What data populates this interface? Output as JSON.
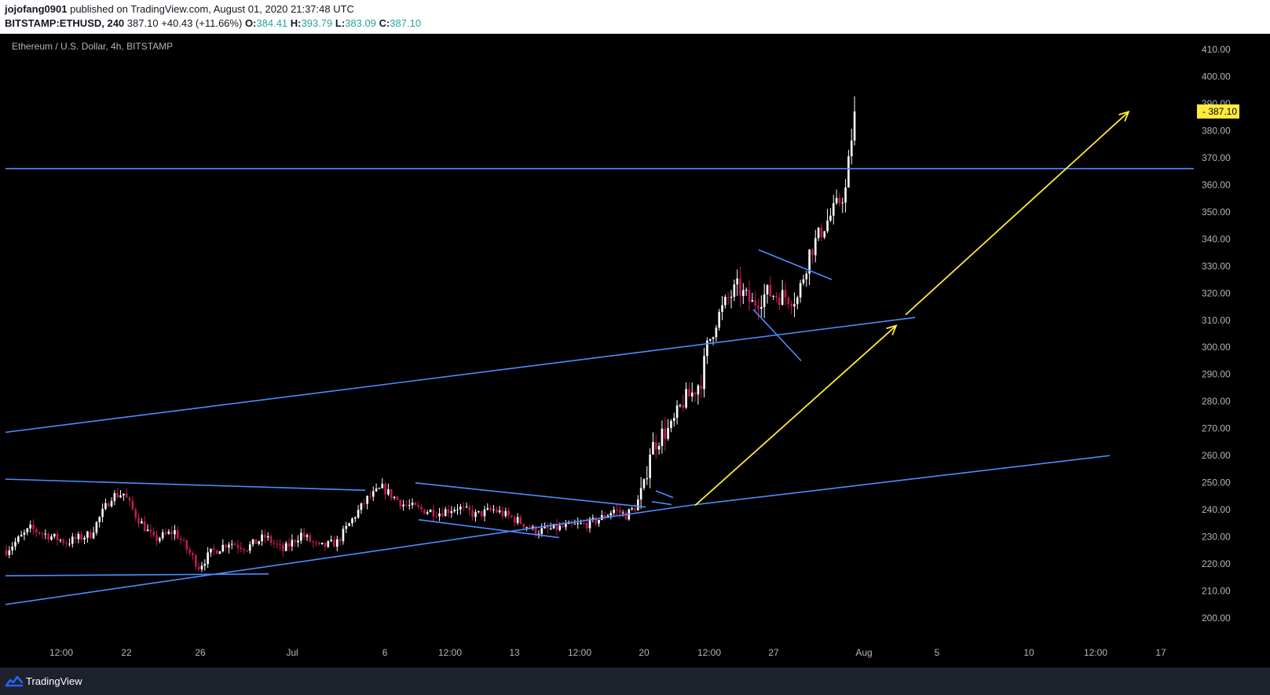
{
  "header": {
    "author": "jojofang0901",
    "published_text": "published on TradingView.com, August 01, 2020 21:37:48 UTC",
    "symbol": "BITSTAMP:ETHUSD, 240",
    "last": "387.10",
    "change": "+40.43 (+11.66%)",
    "o_label": "O:",
    "o_value": "384.41",
    "h_label": "H:",
    "h_value": "393.79",
    "l_label": "L:",
    "l_value": "383.09",
    "c_label": "C:",
    "c_value": "387.10"
  },
  "footer": {
    "brand": "TradingView",
    "logo_icon": "tradingview-logo-icon"
  },
  "colors": {
    "background": "#000000",
    "axis_text": "#b2b5be",
    "up_candle": "#ffffff",
    "down_candle": "#c2185b",
    "trendline": "#4c8dff",
    "arrow": "#ffeb3b",
    "price_label_bg": "#ffeb3b"
  },
  "chart_data": {
    "type": "candlestick",
    "title": "Ethereum / U.S. Dollar, 4h, BITSTAMP",
    "ylim": [
      195,
      413
    ],
    "y_ticks": [
      "410.00",
      "400.00",
      "390.00",
      "380.00",
      "370.00",
      "360.00",
      "350.00",
      "340.00",
      "330.00",
      "320.00",
      "310.00",
      "300.00",
      "290.00",
      "280.00",
      "270.00",
      "260.00",
      "250.00",
      "240.00",
      "230.00",
      "220.00",
      "210.00",
      "200.00"
    ],
    "x_ticks": [
      "12:00",
      "22",
      "26",
      "Jul",
      "6",
      "12:00",
      "13",
      "12:00",
      "20",
      "12:00",
      "27",
      "Aug",
      "5",
      "10",
      "12:00",
      "17"
    ],
    "last_price_label": "387.10",
    "price_path": [
      [
        0,
        225
      ],
      [
        8,
        233
      ],
      [
        20,
        228
      ],
      [
        28,
        231
      ],
      [
        35,
        245
      ],
      [
        39,
        246
      ],
      [
        43,
        238
      ],
      [
        49,
        229
      ],
      [
        56,
        232
      ],
      [
        64,
        219
      ],
      [
        68,
        224
      ],
      [
        74,
        228
      ],
      [
        80,
        226
      ],
      [
        86,
        230
      ],
      [
        92,
        225
      ],
      [
        98,
        231
      ],
      [
        104,
        226
      ],
      [
        110,
        228
      ],
      [
        116,
        238
      ],
      [
        120,
        244
      ],
      [
        125,
        248
      ],
      [
        132,
        242
      ],
      [
        138,
        240
      ],
      [
        144,
        239
      ],
      [
        150,
        241
      ],
      [
        156,
        238
      ],
      [
        162,
        240
      ],
      [
        170,
        236
      ],
      [
        176,
        232
      ],
      [
        182,
        233
      ],
      [
        188,
        234
      ],
      [
        194,
        235
      ],
      [
        198,
        237
      ],
      [
        202,
        240
      ],
      [
        206,
        238
      ],
      [
        209,
        241
      ],
      [
        212,
        248
      ],
      [
        214,
        262
      ],
      [
        218,
        268
      ],
      [
        221,
        270
      ],
      [
        225,
        280
      ],
      [
        228,
        283
      ],
      [
        231,
        288
      ],
      [
        233,
        300
      ],
      [
        236,
        310
      ],
      [
        240,
        318
      ],
      [
        243,
        322
      ],
      [
        248,
        316
      ],
      [
        253,
        320
      ],
      [
        258,
        319
      ],
      [
        263,
        318
      ],
      [
        267,
        335
      ],
      [
        272,
        345
      ],
      [
        276,
        352
      ],
      [
        279,
        358
      ],
      [
        280,
        368
      ],
      [
        282,
        387
      ]
    ],
    "trendlines": [
      {
        "x1": 7,
        "y1": 205,
        "x2": 880,
        "y2": 241.7
      },
      {
        "x1": 7,
        "y1": 268.6,
        "x2": 1165,
        "y2": 311
      },
      {
        "x1": 880,
        "y1": 241.7,
        "x2": 1413,
        "y2": 260
      },
      {
        "x1": 7,
        "y1": 251.3,
        "x2": 465,
        "y2": 247.2
      },
      {
        "x1": 7,
        "y1": 215.6,
        "x2": 342,
        "y2": 216.3
      },
      {
        "x1": 529,
        "y1": 249.9,
        "x2": 822,
        "y2": 241
      },
      {
        "x1": 533,
        "y1": 236.3,
        "x2": 712,
        "y2": 229.7
      },
      {
        "x1": 835,
        "y1": 247,
        "x2": 857,
        "y2": 244.5
      },
      {
        "x1": 830,
        "y1": 243,
        "x2": 855,
        "y2": 241.9
      },
      {
        "x1": 966,
        "y1": 336,
        "x2": 1059,
        "y2": 325
      },
      {
        "x1": 959,
        "y1": 314,
        "x2": 1020,
        "y2": 295
      },
      {
        "x1": 7,
        "y1": 366,
        "x2": 1520,
        "y2": 366
      }
    ],
    "arrows": [
      {
        "x1": 885,
        "y1": 241.6,
        "x2": 1141,
        "y2": 308
      },
      {
        "x1": 1153,
        "y1": 312,
        "x2": 1437,
        "y2": 387
      }
    ]
  }
}
